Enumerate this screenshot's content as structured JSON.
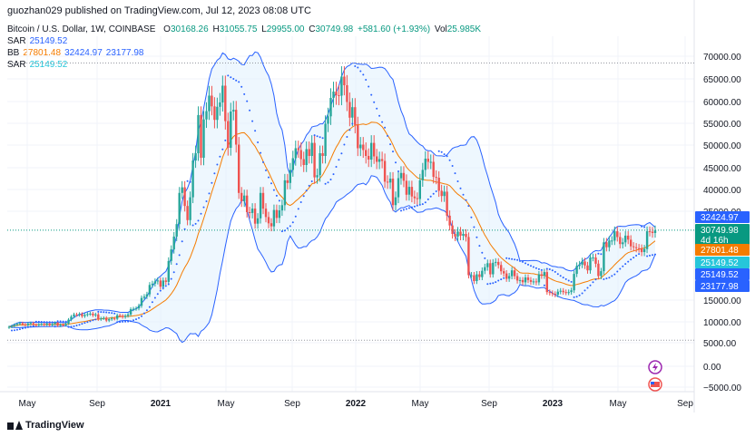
{
  "header": {
    "publisher": "guozhan029 published on TradingView.com, Jul 12, 2023 08:08 UTC"
  },
  "legend": {
    "symbol": "Bitcoin / U.S. Dollar, 1W, COINBASE",
    "o_label": "O",
    "o_value": "30168.26",
    "h_label": "H",
    "h_value": "31055.75",
    "l_label": "L",
    "l_value": "29955.00",
    "c_label": "C",
    "c_value": "30749.98",
    "change": "+581.60 (+1.93%)",
    "vol_label": "Vol",
    "vol_value": "25.985K",
    "sar1_label": "SAR",
    "sar1_value": "25149.52",
    "bb_label": "BB",
    "bb_mid": "27801.48",
    "bb_upper": "32424.97",
    "bb_lower": "23177.98",
    "sar2_label": "SAR",
    "sar2_value": "25149.52"
  },
  "footer": {
    "brand": "TradingView"
  },
  "chart_data": {
    "type": "candlestick",
    "y_scale": "log",
    "ylim": [
      -5000,
      75000
    ],
    "y_ticks": [
      "70000.00",
      "65000.00",
      "60000.00",
      "55000.00",
      "50000.00",
      "45000.00",
      "40000.00",
      "35000.00",
      "15000.00",
      "10000.00",
      "5000.00",
      "0.00",
      "−5000.00"
    ],
    "x_ticks": [
      "May",
      "Sep",
      "2021",
      "May",
      "Sep",
      "2022",
      "May",
      "Sep",
      "2023",
      "May",
      "Sep"
    ],
    "price_badges": [
      {
        "value": "32424.97",
        "color": "#2962ff"
      },
      {
        "value": "30749.98",
        "extra": "4d 16h",
        "color": "#089981"
      },
      {
        "value": "27801.48",
        "color": "#f57c00"
      },
      {
        "value": "25149.52",
        "color": "#26c6da"
      },
      {
        "value": "25149.52",
        "color": "#2962ff"
      },
      {
        "value": "23177.98",
        "color": "#2962ff"
      }
    ],
    "colors": {
      "up": "#26a69a",
      "down": "#ef5350",
      "bb_band": "#2962ff",
      "bb_basis": "#f57c00",
      "sar": "#2962ff",
      "fill": "#e3f2fd"
    },
    "closes": [
      8800,
      9000,
      9300,
      9500,
      9700,
      9400,
      9200,
      9600,
      9700,
      9300,
      9200,
      9400,
      9500,
      9300,
      9600,
      9200,
      9500,
      9800,
      9100,
      9300,
      9200,
      9600,
      10500,
      11200,
      11700,
      11600,
      11800,
      11300,
      11600,
      11800,
      11900,
      11500,
      11700,
      10600,
      10800,
      10900,
      10300,
      10600,
      10800,
      10700,
      11500,
      11400,
      11100,
      11400,
      11700,
      12900,
      13000,
      13100,
      13700,
      15500,
      15800,
      16300,
      18400,
      18700,
      19200,
      19400,
      18000,
      19400,
      19100,
      23800,
      26400,
      29300,
      32100,
      39200,
      40500,
      36200,
      33000,
      38200,
      46600,
      48200,
      56900,
      47200,
      55900,
      57800,
      61300,
      58900,
      55800,
      58800,
      59800,
      63500,
      55500,
      49400,
      57700,
      58100,
      50100,
      39200,
      37300,
      38600,
      34800,
      34600,
      35600,
      32200,
      33400,
      39200,
      35600,
      33700,
      32300,
      31600,
      35300,
      33500,
      35200,
      36400,
      42100,
      41500,
      44500,
      47100,
      49300,
      48900,
      46900,
      45600,
      49100,
      47600,
      50500,
      42800,
      43300,
      48200,
      47600,
      54900,
      56600,
      60800,
      62200,
      61400,
      61300,
      65500,
      63600,
      59900,
      56300,
      58700,
      54600,
      49300,
      50100,
      48900,
      47600,
      46800,
      50500,
      47500,
      46300,
      46900,
      46500,
      41800,
      41600,
      42500,
      36400,
      38200,
      42600,
      43800,
      42000,
      38800,
      40600,
      38400,
      38000,
      37800,
      42100,
      44500,
      47000,
      46300,
      46300,
      42900,
      42700,
      39700,
      38500,
      39500,
      34000,
      31800,
      29900,
      29300,
      30400,
      29500,
      29900,
      29200,
      20600,
      20600,
      19300,
      20800,
      20200,
      21600,
      22400,
      23300,
      20800,
      23400,
      23600,
      22900,
      21500,
      21000,
      19800,
      20400,
      21700,
      20400,
      19400,
      19500,
      19000,
      20100,
      19500,
      19100,
      19200,
      19000,
      20800,
      20500,
      21300,
      16800,
      16600,
      16400,
      16200,
      16900,
      17100,
      16800,
      16700,
      16800,
      17200,
      20900,
      22700,
      23000,
      23700,
      22800,
      21700,
      24600,
      24600,
      23200,
      20400,
      21500,
      28000,
      26900,
      28400,
      28400,
      30500,
      29200,
      27600,
      28000,
      29500,
      28600,
      27100,
      26900,
      26700,
      26600,
      25800,
      26500,
      30500,
      30400,
      30100,
      30700
    ]
  }
}
